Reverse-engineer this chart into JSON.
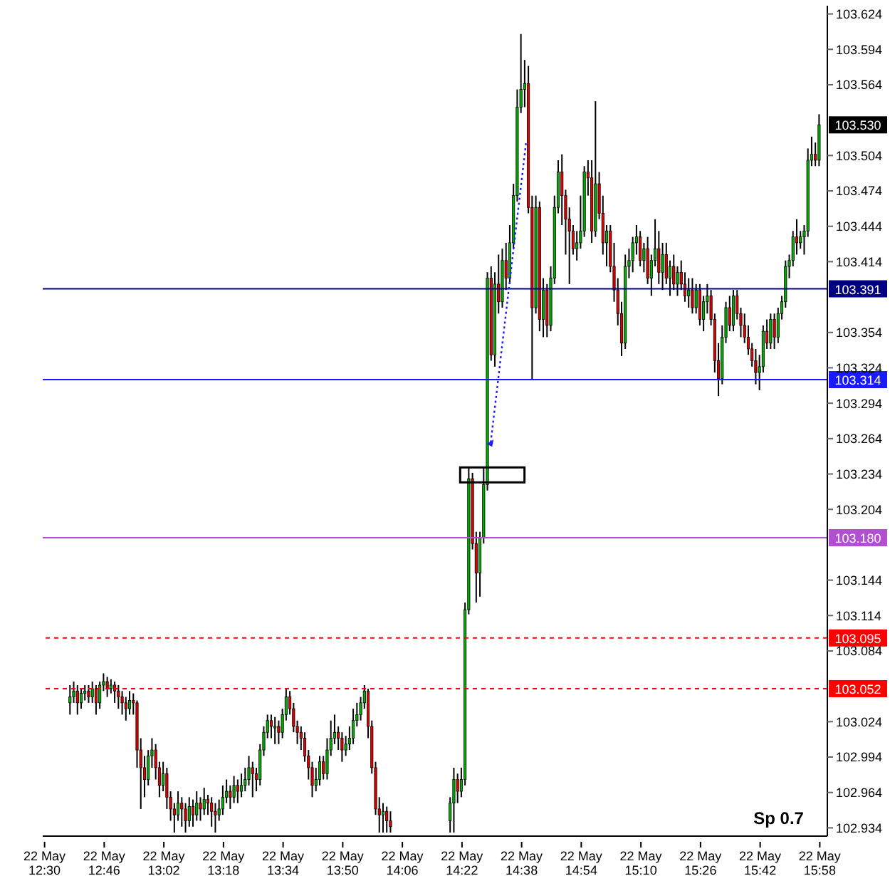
{
  "chart_data": {
    "type": "candlestick",
    "categories": [
      "22 May 12:30",
      null,
      null,
      null,
      null,
      null,
      null,
      null,
      null,
      null,
      null,
      null,
      null,
      null,
      null,
      null,
      "22 May 12:46",
      null,
      null,
      null,
      null,
      null,
      null,
      null,
      null,
      null,
      null,
      null,
      null,
      null,
      null,
      null,
      "22 May 13:02",
      null,
      null,
      null,
      null,
      null,
      null,
      null,
      null,
      null,
      null,
      null,
      null,
      null,
      null,
      null,
      "22 May 13:18",
      null,
      null,
      null,
      null,
      null,
      null,
      null,
      null,
      null,
      null,
      null,
      null,
      null,
      null,
      null,
      "22 May 13:34",
      null,
      null,
      null,
      null,
      null,
      null,
      null,
      null,
      null,
      null,
      null,
      null,
      null,
      null,
      null,
      "22 May 13:50",
      null,
      null,
      null,
      null,
      null,
      null,
      null,
      null,
      null,
      null,
      null,
      null,
      null,
      null,
      null,
      "22 May 14:06",
      null,
      null,
      null,
      null,
      null,
      null,
      null,
      null,
      null,
      null,
      null,
      null,
      null,
      null,
      null,
      "22 May 14:22",
      null,
      null,
      null,
      null,
      null,
      null,
      null,
      null,
      null,
      null,
      null,
      null,
      null,
      null,
      null,
      "22 May 14:38",
      null,
      null,
      null,
      null,
      null,
      null,
      null,
      null,
      null,
      null,
      null,
      null,
      null,
      null,
      null,
      "22 May 14:54",
      null,
      null,
      null,
      null,
      null,
      null,
      null,
      null,
      null,
      null,
      null,
      null,
      null,
      null,
      null,
      "22 May 15:10",
      null,
      null,
      null,
      null,
      null,
      null,
      null,
      null,
      null,
      null,
      null,
      null,
      null,
      null,
      null,
      "22 May 15:26",
      null,
      null,
      null,
      null,
      null,
      null,
      null,
      null,
      null,
      null,
      null,
      null,
      null,
      null,
      null,
      "22 May 15:42",
      null,
      null,
      null,
      null,
      null,
      null,
      null,
      null,
      null,
      null,
      null,
      null,
      null,
      null,
      null,
      "22 May 15:58"
    ],
    "ohlc": [
      null,
      null,
      null,
      null,
      null,
      null,
      null,
      [
        103.04,
        103.055,
        103.03,
        103.045
      ],
      [
        103.045,
        103.058,
        103.04,
        103.05
      ],
      [
        103.05,
        103.055,
        103.03,
        103.04
      ],
      [
        103.04,
        103.052,
        103.035,
        103.048
      ],
      [
        103.048,
        103.055,
        103.042,
        103.05
      ],
      [
        103.05,
        103.055,
        103.04,
        103.045
      ],
      [
        103.045,
        103.058,
        103.04,
        103.052
      ],
      [
        103.052,
        103.055,
        103.03,
        103.04
      ],
      [
        103.04,
        103.058,
        103.035,
        103.055
      ],
      [
        103.055,
        103.065,
        103.05,
        103.058
      ],
      [
        103.058,
        103.062,
        103.045,
        103.052
      ],
      [
        103.052,
        103.06,
        103.048,
        103.055
      ],
      [
        103.055,
        103.058,
        103.04,
        103.05
      ],
      [
        103.05,
        103.055,
        103.035,
        103.045
      ],
      [
        103.045,
        103.05,
        103.03,
        103.04
      ],
      [
        103.04,
        103.045,
        103.025,
        103.035
      ],
      [
        103.035,
        103.05,
        103.03,
        103.042
      ],
      [
        103.042,
        103.048,
        103.03,
        103.04
      ],
      [
        103.04,
        103.042,
        102.985,
        103.0
      ],
      [
        103.0,
        103.01,
        102.95,
        102.985
      ],
      [
        102.985,
        102.995,
        102.96,
        102.975
      ],
      [
        102.975,
        103.0,
        102.97,
        102.995
      ],
      [
        102.995,
        103.01,
        102.985,
        103.0
      ],
      [
        103.0,
        103.005,
        102.975,
        102.985
      ],
      [
        102.985,
        102.99,
        102.96,
        102.97
      ],
      [
        102.97,
        102.99,
        102.965,
        102.98
      ],
      [
        102.98,
        102.985,
        102.95,
        102.96
      ],
      [
        102.96,
        102.965,
        102.94,
        102.95
      ],
      [
        102.95,
        102.955,
        102.93,
        102.945
      ],
      [
        102.945,
        102.965,
        102.94,
        102.955
      ],
      [
        102.955,
        102.96,
        102.935,
        102.95
      ],
      [
        102.95,
        102.955,
        102.93,
        102.94
      ],
      [
        102.94,
        102.96,
        102.935,
        102.952
      ],
      [
        102.952,
        102.958,
        102.935,
        102.945
      ],
      [
        102.945,
        102.965,
        102.94,
        102.955
      ],
      [
        102.955,
        102.96,
        102.94,
        102.95
      ],
      [
        102.95,
        102.968,
        102.945,
        102.958
      ],
      [
        102.958,
        102.962,
        102.945,
        102.955
      ],
      [
        102.955,
        102.96,
        102.935,
        102.948
      ],
      [
        102.948,
        102.955,
        102.93,
        102.945
      ],
      [
        102.945,
        102.958,
        102.94,
        102.95
      ],
      [
        102.95,
        102.97,
        102.945,
        102.96
      ],
      [
        102.96,
        102.975,
        102.955,
        102.965
      ],
      [
        102.965,
        102.97,
        102.95,
        102.96
      ],
      [
        102.96,
        102.978,
        102.955,
        102.97
      ],
      [
        102.97,
        102.975,
        102.955,
        102.965
      ],
      [
        102.965,
        102.98,
        102.96,
        102.97
      ],
      [
        102.97,
        102.985,
        102.965,
        102.975
      ],
      [
        102.975,
        102.995,
        102.97,
        102.985
      ],
      [
        102.985,
        102.99,
        102.96,
        102.98
      ],
      [
        102.98,
        102.985,
        102.965,
        102.975
      ],
      [
        102.975,
        103.005,
        102.97,
        103.0
      ],
      [
        103.0,
        103.02,
        102.995,
        103.015
      ],
      [
        103.015,
        103.03,
        103.01,
        103.025
      ],
      [
        103.025,
        103.03,
        103.01,
        103.02
      ],
      [
        103.02,
        103.028,
        103.005,
        103.02
      ],
      [
        103.02,
        103.025,
        103.005,
        103.015
      ],
      [
        103.015,
        103.035,
        103.01,
        103.03
      ],
      [
        103.03,
        103.052,
        103.025,
        103.045
      ],
      [
        103.045,
        103.05,
        103.03,
        103.035
      ],
      [
        103.035,
        103.04,
        103.015,
        103.02
      ],
      [
        103.02,
        103.025,
        103.005,
        103.015
      ],
      [
        103.015,
        103.02,
        103.0,
        103.01
      ],
      [
        103.01,
        103.015,
        102.99,
        102.995
      ],
      [
        102.995,
        103.0,
        102.975,
        102.985
      ],
      [
        102.985,
        102.99,
        102.96,
        102.97
      ],
      [
        102.97,
        102.985,
        102.965,
        102.975
      ],
      [
        102.975,
        102.995,
        102.97,
        102.99
      ],
      [
        102.99,
        102.995,
        102.975,
        102.98
      ],
      [
        102.98,
        103.01,
        102.975,
        103.0
      ],
      [
        103.0,
        103.025,
        102.995,
        103.01
      ],
      [
        103.01,
        103.03,
        103.005,
        103.015
      ],
      [
        103.015,
        103.02,
        103.0,
        103.01
      ],
      [
        103.01,
        103.015,
        102.99,
        103.0
      ],
      [
        103.0,
        103.012,
        102.995,
        103.005
      ],
      [
        103.005,
        103.02,
        103.0,
        103.01
      ],
      [
        103.01,
        103.035,
        103.005,
        103.025
      ],
      [
        103.025,
        103.04,
        103.02,
        103.03
      ],
      [
        103.03,
        103.045,
        103.025,
        103.04
      ],
      [
        103.04,
        103.055,
        103.035,
        103.05
      ],
      [
        103.05,
        103.052,
        103.01,
        103.02
      ],
      [
        103.02,
        103.025,
        102.98,
        102.985
      ],
      [
        102.985,
        102.99,
        102.945,
        102.95
      ],
      [
        102.95,
        102.96,
        102.93,
        102.945
      ],
      [
        102.945,
        102.955,
        102.93,
        102.948
      ],
      [
        102.948,
        102.952,
        102.93,
        102.94
      ],
      [
        102.94,
        102.948,
        102.93,
        102.935
      ],
      null,
      null,
      null,
      null,
      null,
      null,
      null,
      null,
      null,
      null,
      null,
      null,
      null,
      null,
      null,
      [
        102.94,
        102.96,
        102.93,
        102.955
      ],
      [
        102.955,
        102.985,
        102.93,
        102.975
      ],
      [
        102.975,
        102.98,
        102.955,
        102.965
      ],
      [
        102.965,
        102.985,
        102.96,
        102.975
      ],
      [
        102.975,
        103.125,
        102.97,
        103.119
      ],
      [
        103.119,
        103.24,
        103.115,
        103.23
      ],
      [
        103.23,
        103.235,
        103.17,
        103.175
      ],
      [
        103.175,
        103.185,
        103.125,
        103.15
      ],
      [
        103.15,
        103.185,
        103.13,
        103.18
      ],
      [
        103.18,
        103.24,
        103.175,
        103.225
      ],
      [
        103.225,
        103.405,
        103.22,
        103.4
      ],
      [
        103.4,
        103.41,
        103.33,
        103.335
      ],
      [
        103.335,
        103.405,
        103.325,
        103.395
      ],
      [
        103.395,
        103.42,
        103.37,
        103.38
      ],
      [
        103.38,
        103.425,
        103.375,
        103.415
      ],
      [
        103.415,
        103.43,
        103.39,
        103.4
      ],
      [
        103.4,
        103.445,
        103.395,
        103.43
      ],
      [
        103.43,
        103.48,
        103.425,
        103.47
      ],
      [
        103.47,
        103.56,
        103.465,
        103.545
      ],
      [
        103.545,
        103.607,
        103.54,
        103.56
      ],
      [
        103.56,
        103.585,
        103.545,
        103.565
      ],
      [
        103.565,
        103.58,
        103.455,
        103.46
      ],
      [
        103.46,
        103.47,
        103.314,
        103.375
      ],
      [
        103.375,
        103.47,
        103.37,
        103.46
      ],
      [
        103.46,
        103.465,
        103.355,
        103.365
      ],
      [
        103.365,
        103.4,
        103.35,
        103.39
      ],
      [
        103.39,
        103.395,
        103.35,
        103.36
      ],
      [
        103.36,
        103.41,
        103.355,
        103.4
      ],
      [
        103.4,
        103.47,
        103.395,
        103.46
      ],
      [
        103.46,
        103.5,
        103.455,
        103.49
      ],
      [
        103.49,
        103.505,
        103.445,
        103.47
      ],
      [
        103.47,
        103.475,
        103.42,
        103.45
      ],
      [
        103.45,
        103.46,
        103.395,
        103.44
      ],
      [
        103.44,
        103.445,
        103.42,
        103.425
      ],
      [
        103.425,
        103.44,
        103.415,
        103.43
      ],
      [
        103.43,
        103.47,
        103.425,
        103.44
      ],
      [
        103.44,
        103.495,
        103.435,
        103.49
      ],
      [
        103.49,
        103.5,
        103.47,
        103.485
      ],
      [
        103.485,
        103.5,
        103.43,
        103.44
      ],
      [
        103.44,
        103.55,
        103.435,
        103.48
      ],
      [
        103.48,
        103.49,
        103.45,
        103.455
      ],
      [
        103.455,
        103.47,
        103.42,
        103.43
      ],
      [
        103.43,
        103.445,
        103.41,
        103.44
      ],
      [
        103.44,
        103.445,
        103.405,
        103.41
      ],
      [
        103.41,
        103.43,
        103.38,
        103.39
      ],
      [
        103.39,
        103.4,
        103.36,
        103.37
      ],
      [
        103.37,
        103.38,
        103.334,
        103.345
      ],
      [
        103.345,
        103.42,
        103.34,
        103.41
      ],
      [
        103.41,
        103.425,
        103.4,
        103.415
      ],
      [
        103.415,
        103.435,
        103.405,
        103.43
      ],
      [
        103.43,
        103.445,
        103.42,
        103.435
      ],
      [
        103.435,
        103.44,
        103.41,
        103.415
      ],
      [
        103.415,
        103.43,
        103.405,
        103.425
      ],
      [
        103.425,
        103.435,
        103.395,
        103.4
      ],
      [
        103.4,
        103.42,
        103.385,
        103.415
      ],
      [
        103.415,
        103.45,
        103.41,
        103.425
      ],
      [
        103.425,
        103.44,
        103.395,
        103.405
      ],
      [
        103.405,
        103.43,
        103.39,
        103.42
      ],
      [
        103.42,
        103.43,
        103.395,
        103.4
      ],
      [
        103.4,
        103.415,
        103.385,
        103.41
      ],
      [
        103.41,
        103.42,
        103.39,
        103.395
      ],
      [
        103.395,
        103.41,
        103.385,
        103.405
      ],
      [
        103.405,
        103.415,
        103.39,
        103.395
      ],
      [
        103.395,
        103.405,
        103.38,
        103.385
      ],
      [
        103.385,
        103.4,
        103.375,
        103.39
      ],
      [
        103.39,
        103.4,
        103.37,
        103.375
      ],
      [
        103.375,
        103.395,
        103.37,
        103.39
      ],
      [
        103.39,
        103.395,
        103.36,
        103.365
      ],
      [
        103.365,
        103.385,
        103.355,
        103.38
      ],
      [
        103.38,
        103.395,
        103.37,
        103.385
      ],
      [
        103.385,
        103.39,
        103.36,
        103.365
      ],
      [
        103.365,
        103.37,
        103.32,
        103.33
      ],
      [
        103.33,
        103.345,
        103.3,
        103.315
      ],
      [
        103.315,
        103.36,
        103.31,
        103.35
      ],
      [
        103.35,
        103.38,
        103.345,
        103.375
      ],
      [
        103.375,
        103.385,
        103.355,
        103.36
      ],
      [
        103.36,
        103.39,
        103.355,
        103.385
      ],
      [
        103.385,
        103.39,
        103.365,
        103.37
      ],
      [
        103.37,
        103.375,
        103.35,
        103.36
      ],
      [
        103.36,
        103.37,
        103.345,
        103.35
      ],
      [
        103.35,
        103.36,
        103.335,
        103.34
      ],
      [
        103.34,
        103.345,
        103.325,
        103.33
      ],
      [
        103.33,
        103.34,
        103.31,
        103.32
      ],
      [
        103.32,
        103.335,
        103.305,
        103.325
      ],
      [
        103.325,
        103.36,
        103.32,
        103.355
      ],
      [
        103.355,
        103.365,
        103.34,
        103.345
      ],
      [
        103.345,
        103.37,
        103.34,
        103.365
      ],
      [
        103.365,
        103.37,
        103.34,
        103.35
      ],
      [
        103.35,
        103.375,
        103.345,
        103.37
      ],
      [
        103.37,
        103.385,
        103.365,
        103.38
      ],
      [
        103.38,
        103.415,
        103.375,
        103.41
      ],
      [
        103.41,
        103.42,
        103.4,
        103.415
      ],
      [
        103.415,
        103.44,
        103.41,
        103.435
      ],
      [
        103.435,
        103.45,
        103.42,
        103.43
      ],
      [
        103.43,
        103.44,
        103.425,
        103.435
      ],
      [
        103.435,
        103.445,
        103.42,
        103.44
      ],
      [
        103.44,
        103.51,
        103.435,
        103.5
      ],
      [
        103.5,
        103.52,
        103.495,
        103.505
      ],
      [
        103.505,
        103.515,
        103.495,
        103.5
      ],
      [
        103.5,
        103.539,
        103.495,
        103.53
      ]
    ],
    "ylim": [
      102.927,
      103.631
    ],
    "yticks": [
      103.624,
      103.594,
      103.564,
      103.504,
      103.474,
      103.444,
      103.414,
      103.354,
      103.324,
      103.294,
      103.264,
      103.234,
      103.204,
      103.144,
      103.114,
      103.084,
      103.024,
      102.994,
      102.964,
      102.934
    ],
    "ref_lines": [
      {
        "axis": "y",
        "value": 103.391,
        "label": "103.391",
        "color": "#000080",
        "line_style": "solid"
      },
      {
        "axis": "y",
        "value": 103.314,
        "label": "103.314",
        "color": "#1a1aff",
        "line_style": "solid"
      },
      {
        "axis": "y",
        "value": 103.18,
        "label": "103.180",
        "color": "#b050d0",
        "line_style": "solid"
      },
      {
        "axis": "y",
        "value": 103.095,
        "label": "103.095",
        "color": "#ff0000",
        "line_style": "dashed"
      },
      {
        "axis": "y",
        "value": 103.052,
        "label": "103.052",
        "color": "#ff0000",
        "line_style": "dashed"
      }
    ],
    "annotations": [
      "Sp 0.7",
      "103.530"
    ]
  }
}
